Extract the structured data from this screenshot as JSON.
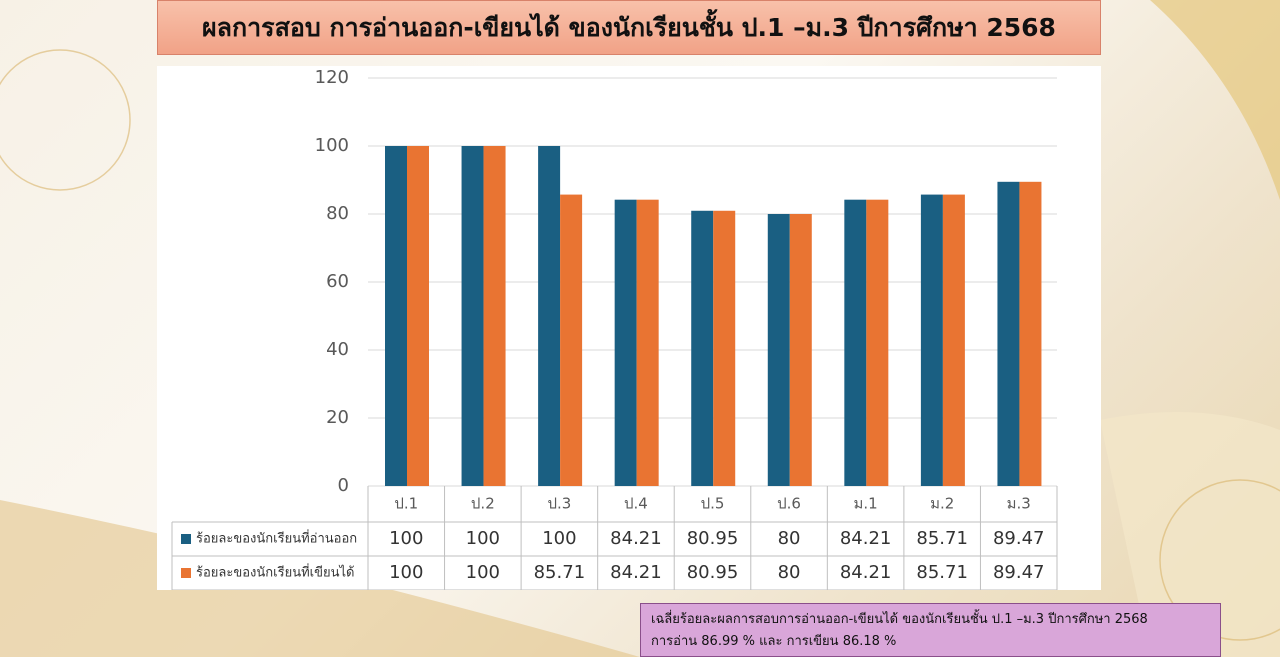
{
  "chart_data": {
    "type": "bar",
    "title": "ผลการสอบ การอ่านออก-เขียนได้ ของนักเรียนชั้น ป.1 –ม.3 ปีการศึกษา 2568",
    "categories": [
      "ป.1",
      "ป.2",
      "ป.3",
      "ป.4",
      "ป.5",
      "ป.6",
      "ม.1",
      "ม.2",
      "ม.3"
    ],
    "series": [
      {
        "name": "ร้อยละของนักเรียนที่อ่านออก",
        "color": "#1a5f82",
        "values": [
          100,
          100,
          100,
          84.21,
          80.95,
          80,
          84.21,
          85.71,
          89.47
        ]
      },
      {
        "name": "ร้อยละของนักเรียนที่เขียนได้",
        "color": "#e97432",
        "values": [
          100,
          100,
          85.71,
          84.21,
          80.95,
          80,
          84.21,
          85.71,
          89.47
        ]
      }
    ],
    "ylim": [
      0,
      120
    ],
    "yticks": [
      0,
      20,
      40,
      60,
      80,
      100,
      120
    ],
    "grid": true,
    "note": [
      "เฉลี่ยร้อยละผลการสอบการอ่านออก-เขียนได้ ของนักเรียนชั้น ป.1 –ม.3 ปีการศึกษา 2568",
      "การอ่าน 86.99 %  และ การเขียน 86.18 %"
    ]
  }
}
